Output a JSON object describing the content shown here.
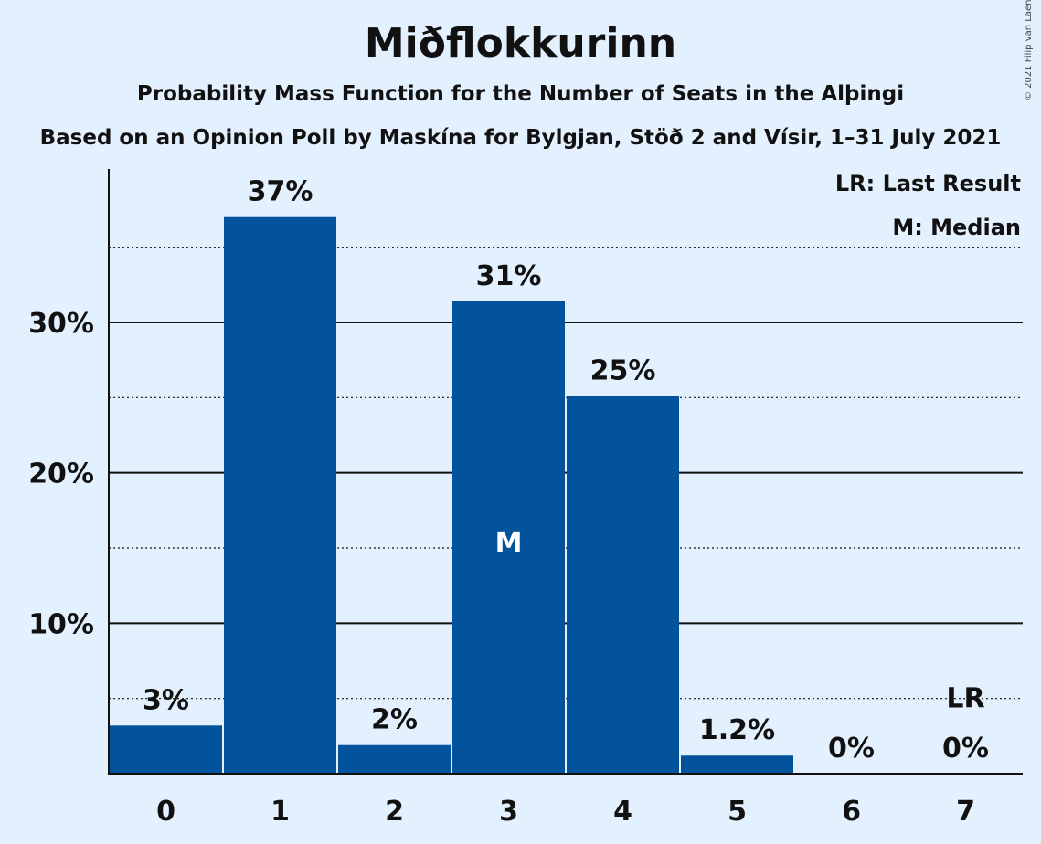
{
  "chart_data": {
    "type": "bar",
    "title": "Miðflokkurinn",
    "subtitle": "Probability Mass Function for the Number of Seats in the Alþingi",
    "subtitle2": "Based on an Opinion Poll by Maskína for Bylgjan, Stöð 2 and Vísir, 1–31 July 2021",
    "copyright": "© 2021 Filip van Laenen",
    "categories": [
      "0",
      "1",
      "2",
      "3",
      "4",
      "5",
      "6",
      "7"
    ],
    "values": [
      3.2,
      37.0,
      1.9,
      31.4,
      25.1,
      1.2,
      0,
      0
    ],
    "bar_labels": [
      "3%",
      "37%",
      "2%",
      "31%",
      "25%",
      "1.2%",
      "0%",
      "0%"
    ],
    "ylim": [
      0,
      40
    ],
    "y_ticks": [
      {
        "value": 10,
        "label": "10%"
      },
      {
        "value": 20,
        "label": "20%"
      },
      {
        "value": 30,
        "label": "30%"
      }
    ],
    "y_minor_gridlines": [
      5,
      15,
      25,
      35
    ],
    "median_index": 3,
    "median_marker": "M",
    "last_result_index": 7,
    "last_result_marker": "LR",
    "legend": [
      "LR: Last Result",
      "M: Median"
    ],
    "legend_position": "top-right",
    "bar_color": "#02529c"
  }
}
